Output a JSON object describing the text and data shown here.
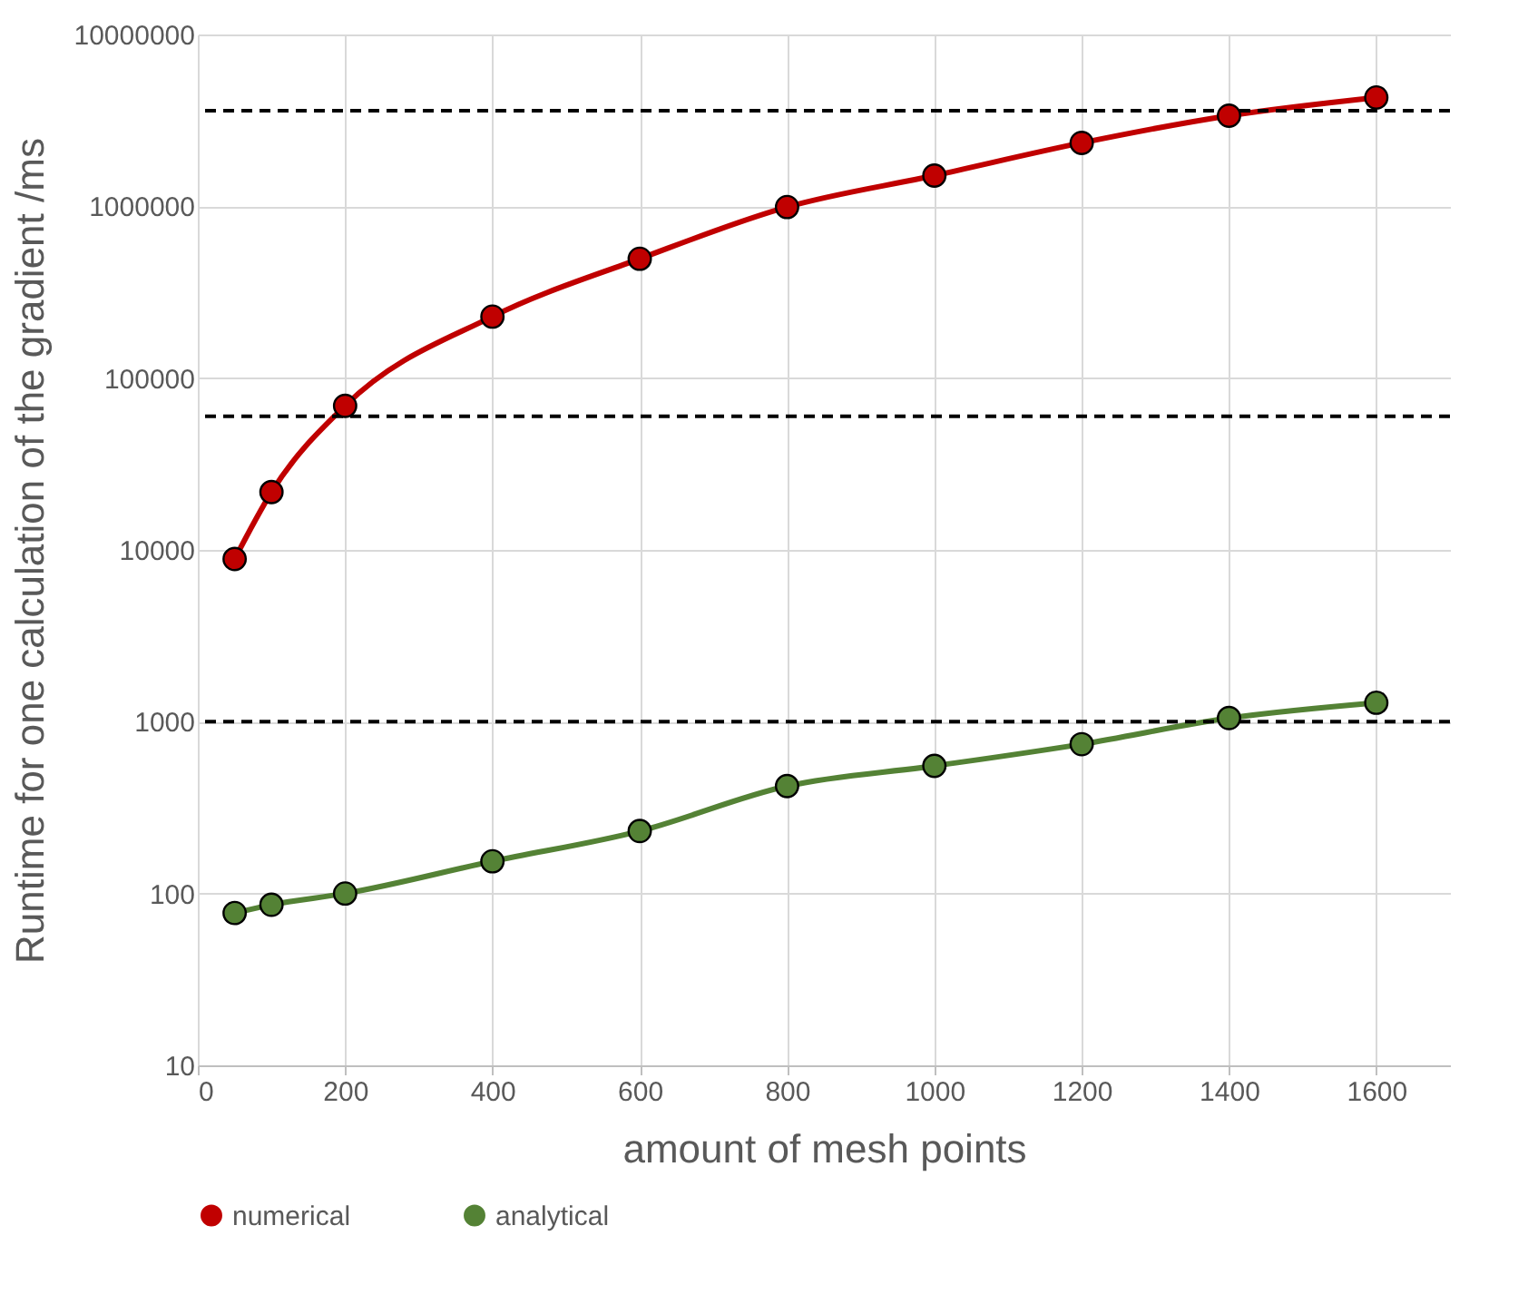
{
  "chart_data": {
    "type": "line",
    "xlabel": "amount of mesh points",
    "ylabel": "Runtime for one calculation of the gradient /ms",
    "x": [
      50,
      100,
      200,
      400,
      600,
      800,
      1000,
      1200,
      1400,
      1600
    ],
    "series": [
      {
        "name": "numerical",
        "color": "#c00000",
        "values": [
          8850,
          21700,
          69000,
          228000,
          495000,
          990000,
          1510000,
          2340000,
          3370000,
          4300000
        ]
      },
      {
        "name": "analytical",
        "color": "#548235",
        "values": [
          77,
          86,
          100,
          154,
          231,
          422,
          553,
          740,
          1050,
          1290
        ]
      }
    ],
    "log": "y",
    "xlim": [
      0,
      1700
    ],
    "xticks": [
      0,
      200,
      400,
      600,
      800,
      1000,
      1200,
      1400,
      1600
    ],
    "ylim": [
      10,
      10000000
    ],
    "yticks": [
      10,
      100,
      1000,
      10000,
      100000,
      1000000,
      10000000
    ],
    "ref_lines": [
      {
        "axis": "y",
        "value": 3600000,
        "color": "#000000",
        "line_style": "dashed"
      },
      {
        "axis": "y",
        "value": 60000,
        "color": "#000000",
        "line_style": "dashed"
      },
      {
        "axis": "y",
        "value": 1000,
        "color": "#000000",
        "line_style": "dashed"
      }
    ],
    "grid": true,
    "legend": "bottom",
    "marker": "circle",
    "line_style": "solid"
  }
}
